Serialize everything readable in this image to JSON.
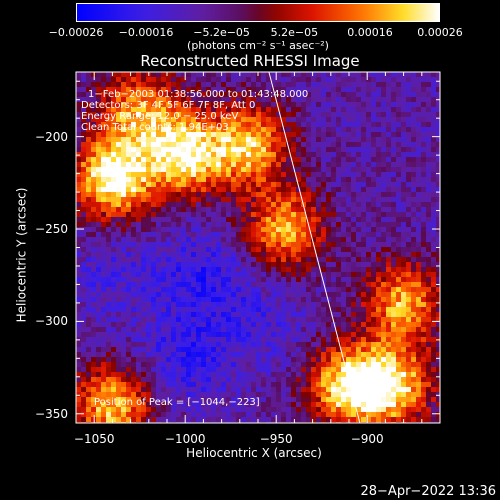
{
  "chart_data": {
    "type": "heatmap",
    "title": "Reconstructed RHESSI Image",
    "xlabel": "Heliocentric X (arcsec)",
    "ylabel": "Heliocentric Y (arcsec)",
    "xlim": [
      -1060,
      -860
    ],
    "ylim": [
      -355,
      -165
    ],
    "x_ticks": [
      "−1050",
      "−1000",
      "−950",
      "−900"
    ],
    "x_tick_values": [
      -1050,
      -1000,
      -950,
      -900
    ],
    "y_ticks": [
      "−200",
      "−250",
      "−300",
      "−350"
    ],
    "y_tick_values": [
      -200,
      -250,
      -300,
      -350
    ],
    "colorbar": {
      "ticks": [
        "−0.00026",
        "−0.00016",
        "−5.2e−05",
        "5.2e−05",
        "0.00016",
        "0.00026"
      ],
      "tick_values": [
        -0.00026,
        -0.00016,
        -5.2e-05,
        5.2e-05,
        0.00016,
        0.00026
      ],
      "range": [
        -0.00026,
        0.00026
      ],
      "units": "(photons cm⁻² s⁻¹ asec⁻²)",
      "colormap": "rainbow-to-hot"
    },
    "annotations": [
      "1−Feb−2003 01:38:56.000 to 01:43:48.000",
      "Detectors: 3F 4F 5F 6F 7F 8F, Att 0",
      "Energy Range: 12.0 − 25.0 keV",
      "Clean     Total counts: 1.94E+03"
    ],
    "peak_label": "Position of Peak = [−1044,−223]",
    "peak": [
      -1044,
      -223
    ],
    "limb_line": [
      [
        -954,
        -165
      ],
      [
        -904,
        -355
      ]
    ],
    "bright_regions": [
      {
        "x": -1040,
        "y": -222,
        "value": 0.00026
      },
      {
        "x": -1000,
        "y": -210,
        "value": 0.00022
      },
      {
        "x": -965,
        "y": -205,
        "value": 0.00018
      },
      {
        "x": -945,
        "y": -250,
        "value": 0.00016
      },
      {
        "x": -880,
        "y": -290,
        "value": 0.00016
      },
      {
        "x": -1040,
        "y": -345,
        "value": 0.00018
      },
      {
        "x": -910,
        "y": -335,
        "value": 0.00022
      },
      {
        "x": -885,
        "y": -335,
        "value": 0.00018
      },
      {
        "x": -1025,
        "y": -185,
        "value": 0.00014
      }
    ],
    "dark_regions": [
      {
        "x": -990,
        "y": -275,
        "value": -0.00016
      },
      {
        "x": -1000,
        "y": -320,
        "value": -0.00016
      },
      {
        "x": -960,
        "y": -300,
        "value": -0.00012
      },
      {
        "x": -1040,
        "y": -275,
        "value": -0.00012
      }
    ]
  },
  "timestamp": "28−Apr−2022 13:36"
}
